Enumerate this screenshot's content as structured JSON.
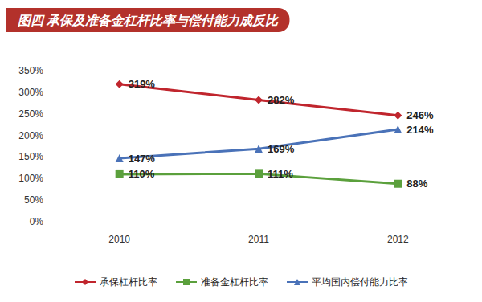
{
  "chart_data": {
    "type": "line",
    "title": "图四 承保及准备金杠杆比率与偿付能力成反比",
    "categories": [
      "2010",
      "2011",
      "2012"
    ],
    "series": [
      {
        "name": "承保杠杆比率",
        "color": "#c0252d",
        "marker": "diamond",
        "values": [
          319,
          282,
          246
        ],
        "value_labels": [
          "319%",
          "282%",
          "246%"
        ]
      },
      {
        "name": "准备金杠杆比率",
        "color": "#5ba03c",
        "marker": "square",
        "values": [
          110,
          111,
          88
        ],
        "value_labels": [
          "110%",
          "111%",
          "88%"
        ]
      },
      {
        "name": "平均国内偿付能力比率",
        "color": "#4a72b8",
        "marker": "triangle",
        "values": [
          147,
          169,
          214
        ],
        "value_labels": [
          "147%",
          "169%",
          "214%"
        ]
      }
    ],
    "ylim": [
      0,
      350
    ],
    "yticks": [
      {
        "value": 0,
        "label": "0%"
      },
      {
        "value": 50,
        "label": "50%"
      },
      {
        "value": 100,
        "label": "100%"
      },
      {
        "value": 150,
        "label": "150%"
      },
      {
        "value": 200,
        "label": "200%"
      },
      {
        "value": 250,
        "label": "250%"
      },
      {
        "value": 300,
        "label": "300%"
      },
      {
        "value": 350,
        "label": "350%"
      }
    ],
    "grid": false,
    "legend": "bottom",
    "data_labels": true
  }
}
